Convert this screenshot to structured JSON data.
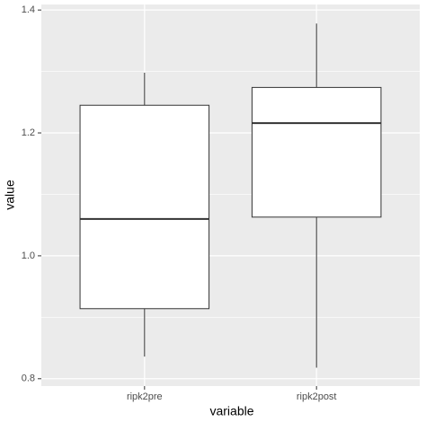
{
  "chart_data": {
    "type": "box",
    "x_label": "variable",
    "y_label": "value",
    "categories": [
      "ripk2pre",
      "ripk2post"
    ],
    "whisker_low": [
      0.836,
      0.818
    ],
    "q1": [
      0.914,
      1.063
    ],
    "median": [
      1.06,
      1.216
    ],
    "q3": [
      1.245,
      1.274
    ],
    "whisker_high": [
      1.298,
      1.378
    ],
    "ylim": [
      0.788,
      1.409
    ],
    "yticks": [
      0.8,
      {
        "value": 1,
        "label": "1.0"
      },
      1.2,
      1.4
    ],
    "grid": true,
    "panel_color": "#ebebeb",
    "box_color": "#ffffff",
    "line_color": "#333333"
  }
}
